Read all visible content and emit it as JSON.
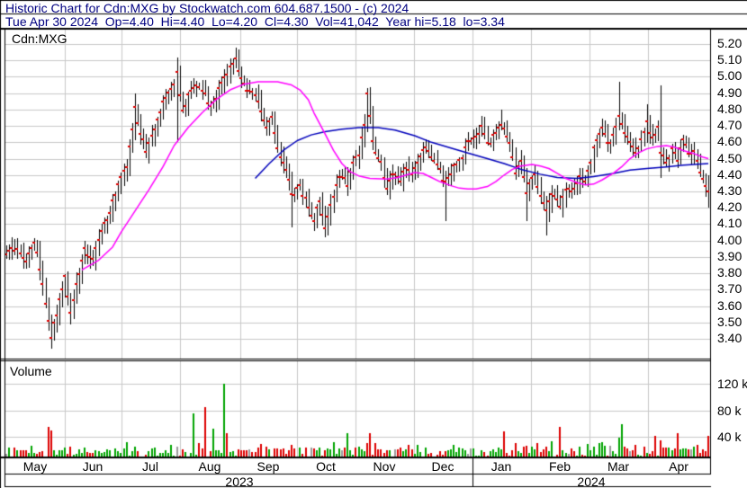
{
  "header": {
    "title_line": "Historic Chart for Cdn:MXG by Stockwatch.com 604.687.1500 - (c) 2024",
    "quote_line": "Tue Apr 30 2024  Op=4.40  Hi=4.40  Lo=4.20  Cl=4.30  Vol=41,042  Year hi=5.18  lo=3.34",
    "quote": {
      "date": "Tue Apr 30 2024",
      "open": "4.40",
      "high": "4.40",
      "low": "4.20",
      "close": "4.30",
      "volume": "41,042",
      "year_high": "5.18",
      "year_low": "3.34"
    }
  },
  "chart_data": {
    "type": "ohlc+volume",
    "symbol_label": "Cdn:MXG",
    "volume_pane_label": "Volume",
    "period": "May 2023 - Apr 2024",
    "price_axis": {
      "min": 3.4,
      "max": 5.2,
      "step": 0.1,
      "labels": [
        "5.20",
        "5.10",
        "5.00",
        "4.90",
        "4.80",
        "4.70",
        "4.60",
        "4.50",
        "4.40",
        "4.30",
        "4.20",
        "4.10",
        "4.00",
        "3.90",
        "3.80",
        "3.70",
        "3.60",
        "3.50",
        "3.40"
      ]
    },
    "volume_axis": {
      "labels": [
        "120 k",
        "80 k",
        "40 k"
      ],
      "values_thousands": [
        120,
        80,
        40
      ]
    },
    "x_axis": {
      "months": [
        "May",
        "Jun",
        "Jul",
        "Aug",
        "Sep",
        "Oct",
        "Nov",
        "Dec",
        "Jan",
        "Feb",
        "Mar",
        "Apr"
      ],
      "years": [
        "2023",
        "2024"
      ]
    },
    "num_days": 252,
    "year_high": 5.18,
    "year_low": 3.34,
    "close_anchors": [
      [
        0,
        3.92
      ],
      [
        4,
        3.96
      ],
      [
        7,
        3.86
      ],
      [
        10,
        4.0
      ],
      [
        13,
        3.74
      ],
      [
        16,
        3.42
      ],
      [
        18,
        3.56
      ],
      [
        21,
        3.78
      ],
      [
        23,
        3.55
      ],
      [
        25,
        3.72
      ],
      [
        28,
        3.95
      ],
      [
        31,
        3.88
      ],
      [
        34,
        4.05
      ],
      [
        37,
        4.18
      ],
      [
        40,
        4.35
      ],
      [
        43,
        4.45
      ],
      [
        46,
        4.8
      ],
      [
        48,
        4.66
      ],
      [
        50,
        4.55
      ],
      [
        52,
        4.62
      ],
      [
        56,
        4.85
      ],
      [
        59,
        4.92
      ],
      [
        61,
        5.02
      ],
      [
        63,
        4.78
      ],
      [
        65,
        4.88
      ],
      [
        68,
        4.95
      ],
      [
        70,
        4.92
      ],
      [
        73,
        4.82
      ],
      [
        75,
        4.88
      ],
      [
        78,
        5.0
      ],
      [
        80,
        5.06
      ],
      [
        82,
        5.1
      ],
      [
        84,
        5.0
      ],
      [
        86,
        4.92
      ],
      [
        89,
        4.88
      ],
      [
        91,
        4.8
      ],
      [
        93,
        4.68
      ],
      [
        95,
        4.75
      ],
      [
        97,
        4.55
      ],
      [
        100,
        4.45
      ],
      [
        102,
        4.28
      ],
      [
        105,
        4.32
      ],
      [
        107,
        4.25
      ],
      [
        110,
        4.12
      ],
      [
        112,
        4.25
      ],
      [
        114,
        4.07
      ],
      [
        117,
        4.28
      ],
      [
        119,
        4.4
      ],
      [
        122,
        4.35
      ],
      [
        124,
        4.47
      ],
      [
        126,
        4.52
      ],
      [
        128,
        4.72
      ],
      [
        129,
        4.9
      ],
      [
        131,
        4.62
      ],
      [
        132,
        4.55
      ],
      [
        134,
        4.47
      ],
      [
        136,
        4.33
      ],
      [
        138,
        4.42
      ],
      [
        141,
        4.37
      ],
      [
        143,
        4.44
      ],
      [
        145,
        4.4
      ],
      [
        147,
        4.48
      ],
      [
        150,
        4.58
      ],
      [
        152,
        4.5
      ],
      [
        155,
        4.42
      ],
      [
        157,
        4.35
      ],
      [
        160,
        4.45
      ],
      [
        163,
        4.52
      ],
      [
        165,
        4.6
      ],
      [
        168,
        4.62
      ],
      [
        170,
        4.7
      ],
      [
        172,
        4.58
      ],
      [
        175,
        4.66
      ],
      [
        177,
        4.72
      ],
      [
        180,
        4.58
      ],
      [
        182,
        4.42
      ],
      [
        184,
        4.48
      ],
      [
        186,
        4.3
      ],
      [
        189,
        4.4
      ],
      [
        191,
        4.28
      ],
      [
        193,
        4.18
      ],
      [
        195,
        4.28
      ],
      [
        198,
        4.22
      ],
      [
        200,
        4.32
      ],
      [
        202,
        4.28
      ],
      [
        205,
        4.38
      ],
      [
        207,
        4.35
      ],
      [
        209,
        4.48
      ],
      [
        211,
        4.62
      ],
      [
        213,
        4.7
      ],
      [
        215,
        4.58
      ],
      [
        217,
        4.65
      ],
      [
        219,
        4.75
      ],
      [
        221,
        4.65
      ],
      [
        223,
        4.6
      ],
      [
        225,
        4.52
      ],
      [
        227,
        4.62
      ],
      [
        229,
        4.72
      ],
      [
        231,
        4.62
      ],
      [
        233,
        4.68
      ],
      [
        234,
        4.55
      ],
      [
        236,
        4.48
      ],
      [
        238,
        4.55
      ],
      [
        240,
        4.5
      ],
      [
        242,
        4.62
      ],
      [
        244,
        4.52
      ],
      [
        246,
        4.55
      ],
      [
        248,
        4.42
      ],
      [
        249,
        4.38
      ],
      [
        251,
        4.3
      ]
    ],
    "bar_overrides": {
      "16": {
        "l": 3.34
      },
      "46": {
        "h": 4.9
      },
      "61": {
        "h": 5.12,
        "l": 4.6
      },
      "82": {
        "h": 5.18
      },
      "102": {
        "l": 4.08
      },
      "114": {
        "l": 4.02
      },
      "129": {
        "h": 4.93
      },
      "157": {
        "l": 4.12
      },
      "177": {
        "h": 4.8
      },
      "186": {
        "l": 4.12
      },
      "193": {
        "l": 4.03
      },
      "219": {
        "h": 4.97
      },
      "229": {
        "h": 4.83
      },
      "234": {
        "h": 4.95,
        "l": 4.38
      },
      "251": {
        "o": 4.4,
        "h": 4.4,
        "l": 4.2,
        "c": 4.3
      }
    },
    "ma_short": {
      "name": "short-term moving average",
      "color": "#ff00ff",
      "points": [
        [
          27,
          3.82
        ],
        [
          33,
          3.88
        ],
        [
          38,
          3.96
        ],
        [
          41,
          4.05
        ],
        [
          46,
          4.18
        ],
        [
          51,
          4.31
        ],
        [
          56,
          4.45
        ],
        [
          60,
          4.58
        ],
        [
          65,
          4.69
        ],
        [
          70,
          4.78
        ],
        [
          75,
          4.86
        ],
        [
          80,
          4.92
        ],
        [
          85,
          4.955
        ],
        [
          90,
          4.97
        ],
        [
          97,
          4.97
        ],
        [
          102,
          4.95
        ],
        [
          105,
          4.92
        ],
        [
          108,
          4.86
        ],
        [
          110,
          4.78
        ],
        [
          114,
          4.65
        ],
        [
          117,
          4.55
        ],
        [
          120,
          4.47
        ],
        [
          123,
          4.42
        ],
        [
          126,
          4.395
        ],
        [
          130,
          4.38
        ],
        [
          136,
          4.375
        ],
        [
          140,
          4.385
        ],
        [
          143,
          4.4
        ],
        [
          146,
          4.415
        ],
        [
          149,
          4.41
        ],
        [
          152,
          4.385
        ],
        [
          155,
          4.36
        ],
        [
          159,
          4.335
        ],
        [
          162,
          4.32
        ],
        [
          165,
          4.315
        ],
        [
          168,
          4.315
        ],
        [
          172,
          4.33
        ],
        [
          175,
          4.36
        ],
        [
          178,
          4.4
        ],
        [
          181,
          4.435
        ],
        [
          184,
          4.455
        ],
        [
          188,
          4.465
        ],
        [
          191,
          4.455
        ],
        [
          194,
          4.44
        ],
        [
          197,
          4.41
        ],
        [
          200,
          4.38
        ],
        [
          204,
          4.355
        ],
        [
          207,
          4.34
        ],
        [
          210,
          4.345
        ],
        [
          213,
          4.37
        ],
        [
          217,
          4.41
        ],
        [
          220,
          4.45
        ],
        [
          223,
          4.5
        ],
        [
          226,
          4.535
        ],
        [
          229,
          4.56
        ],
        [
          233,
          4.575
        ],
        [
          236,
          4.58
        ],
        [
          239,
          4.57
        ],
        [
          242,
          4.55
        ],
        [
          246,
          4.53
        ],
        [
          249,
          4.51
        ],
        [
          251,
          4.5
        ]
      ]
    },
    "ma_long": {
      "name": "long-term moving average",
      "color": "#0000bb",
      "points": [
        [
          89,
          4.38
        ],
        [
          94,
          4.47
        ],
        [
          99,
          4.55
        ],
        [
          104,
          4.61
        ],
        [
          109,
          4.645
        ],
        [
          114,
          4.665
        ],
        [
          120,
          4.68
        ],
        [
          126,
          4.69
        ],
        [
          133,
          4.69
        ],
        [
          139,
          4.675
        ],
        [
          146,
          4.64
        ],
        [
          152,
          4.6
        ],
        [
          159,
          4.565
        ],
        [
          165,
          4.535
        ],
        [
          172,
          4.5
        ],
        [
          178,
          4.47
        ],
        [
          184,
          4.435
        ],
        [
          191,
          4.405
        ],
        [
          197,
          4.385
        ],
        [
          204,
          4.38
        ],
        [
          210,
          4.39
        ],
        [
          217,
          4.41
        ],
        [
          223,
          4.43
        ],
        [
          229,
          4.44
        ],
        [
          236,
          4.45
        ],
        [
          242,
          4.46
        ],
        [
          251,
          4.47
        ]
      ]
    },
    "volume_spikes": [
      [
        15,
        55,
        "red"
      ],
      [
        16,
        50,
        "red"
      ],
      [
        23,
        25,
        "red"
      ],
      [
        37,
        20,
        "green"
      ],
      [
        40,
        18,
        "green"
      ],
      [
        46,
        25,
        "green"
      ],
      [
        59,
        28,
        "green"
      ],
      [
        61,
        25,
        "gray"
      ],
      [
        67,
        75,
        "green"
      ],
      [
        69,
        30,
        "red"
      ],
      [
        71,
        85,
        "red"
      ],
      [
        74,
        52,
        "green"
      ],
      [
        78,
        120,
        "green"
      ],
      [
        79,
        45,
        "red"
      ],
      [
        86,
        20,
        "red"
      ],
      [
        91,
        29,
        "red"
      ],
      [
        97,
        22,
        "red"
      ],
      [
        102,
        28,
        "red"
      ],
      [
        109,
        24,
        "gray"
      ],
      [
        114,
        20,
        "red"
      ],
      [
        119,
        22,
        "green"
      ],
      [
        122,
        45,
        "green"
      ],
      [
        125,
        24,
        "red"
      ],
      [
        129,
        30,
        "red"
      ],
      [
        130,
        45,
        "red"
      ],
      [
        132,
        30,
        "red"
      ],
      [
        136,
        20,
        "red"
      ],
      [
        147,
        28,
        "green"
      ],
      [
        155,
        18,
        "red"
      ],
      [
        160,
        28,
        "green"
      ],
      [
        163,
        22,
        "green"
      ],
      [
        165,
        14,
        "gray"
      ],
      [
        173,
        18,
        "green"
      ],
      [
        178,
        48,
        "red"
      ],
      [
        182,
        30,
        "red"
      ],
      [
        186,
        26,
        "red"
      ],
      [
        190,
        30,
        "red"
      ],
      [
        193,
        25,
        "red"
      ],
      [
        198,
        55,
        "red"
      ],
      [
        200,
        16,
        "green"
      ],
      [
        203,
        18,
        "red"
      ],
      [
        210,
        25,
        "green"
      ],
      [
        212,
        30,
        "green"
      ],
      [
        214,
        26,
        "green"
      ],
      [
        219,
        38,
        "green"
      ],
      [
        220,
        59,
        "green"
      ],
      [
        221,
        25,
        "red"
      ],
      [
        223,
        18,
        "gray"
      ],
      [
        225,
        28,
        "red"
      ],
      [
        228,
        25,
        "red"
      ],
      [
        232,
        41,
        "red"
      ],
      [
        234,
        35,
        "red"
      ],
      [
        238,
        20,
        "green"
      ],
      [
        240,
        45,
        "red"
      ],
      [
        243,
        22,
        "green"
      ],
      [
        247,
        28,
        "red"
      ],
      [
        251,
        41,
        "red"
      ]
    ],
    "colors": {
      "background": "#ffffff",
      "border": "#000000",
      "grid": "#c8c8c8",
      "bar": "#000000",
      "close_tick": "#dd0000",
      "vol_up": "#00a400",
      "vol_down": "#dd0000",
      "vol_flat": "#9a9a9a",
      "header_text": "#000080"
    },
    "render": {
      "seed": 7,
      "noise_amp": 0.018
    }
  }
}
